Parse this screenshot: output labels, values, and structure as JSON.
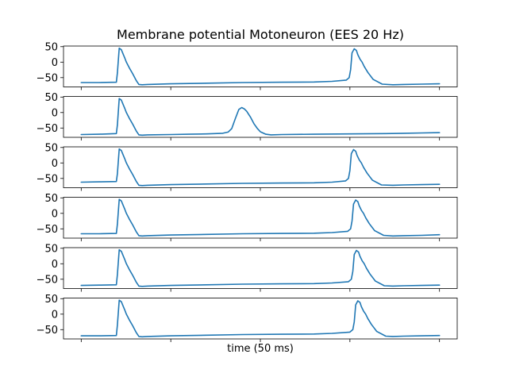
{
  "chart_data": {
    "type": "line",
    "title": "Membrane potential Motoneuron (EES 20 Hz)",
    "xlabel": "time (50 ms)",
    "ylabel": "",
    "grid": false,
    "xlim": [
      0,
      1000
    ],
    "ylim": [
      -80,
      52
    ],
    "yticks": [
      50,
      0,
      -50
    ],
    "ytick_labels": [
      "50",
      "0",
      "−50"
    ],
    "xtick_count": 5,
    "line_color": "#1f77b4",
    "subplots": [
      {
        "name": "",
        "x": [
          0,
          50,
          98,
          101,
          106,
          112,
          117,
          122,
          126,
          134,
          144,
          154,
          161,
          170,
          185,
          250,
          350,
          450,
          560,
          650,
          700,
          740,
          748,
          752,
          756,
          762,
          768,
          772,
          778,
          784,
          790,
          800,
          815,
          840,
          870,
          900,
          950,
          1000
        ],
        "y": [
          -66,
          -66,
          -65,
          -35,
          45,
          40,
          26,
          12,
          0,
          -18,
          -38,
          -60,
          -72,
          -73,
          -72,
          -70,
          -68,
          -66,
          -65,
          -64,
          -62,
          -58,
          -50,
          -25,
          30,
          43,
          38,
          24,
          10,
          0,
          -14,
          -33,
          -56,
          -71,
          -73,
          -72,
          -71,
          -70
        ]
      },
      {
        "name": "",
        "x": [
          0,
          50,
          98,
          101,
          106,
          112,
          117,
          122,
          126,
          134,
          144,
          154,
          161,
          170,
          185,
          250,
          300,
          350,
          395,
          410,
          420,
          430,
          440,
          448,
          455,
          462,
          472,
          482,
          492,
          500,
          515,
          530,
          560,
          650,
          750,
          850,
          950,
          1000
        ],
        "y": [
          -71,
          -70,
          -68,
          -40,
          45,
          40,
          26,
          12,
          0,
          -18,
          -38,
          -60,
          -72,
          -73,
          -72,
          -71,
          -70,
          -69,
          -67,
          -63,
          -52,
          -20,
          10,
          16,
          12,
          4,
          -14,
          -36,
          -52,
          -62,
          -70,
          -72,
          -71,
          -70,
          -69,
          -68,
          -66,
          -65
        ]
      },
      {
        "name": "",
        "x": [
          0,
          50,
          98,
          101,
          106,
          112,
          117,
          122,
          126,
          134,
          144,
          154,
          161,
          170,
          185,
          250,
          350,
          450,
          560,
          650,
          700,
          738,
          746,
          750,
          754,
          760,
          766,
          770,
          776,
          782,
          788,
          798,
          813,
          838,
          870,
          900,
          950,
          1000
        ],
        "y": [
          -62,
          -61,
          -60,
          -35,
          45,
          40,
          26,
          12,
          0,
          -18,
          -38,
          -60,
          -72,
          -73,
          -72,
          -70,
          -68,
          -66,
          -65,
          -64,
          -62,
          -58,
          -50,
          -25,
          30,
          43,
          38,
          24,
          10,
          0,
          -14,
          -33,
          -56,
          -71,
          -72,
          -71,
          -70,
          -69
        ]
      },
      {
        "name": "",
        "x": [
          0,
          50,
          98,
          101,
          106,
          112,
          117,
          122,
          126,
          134,
          144,
          154,
          161,
          170,
          185,
          250,
          350,
          450,
          560,
          650,
          700,
          744,
          752,
          756,
          760,
          766,
          772,
          776,
          782,
          788,
          794,
          804,
          819,
          844,
          870,
          900,
          950,
          1000
        ],
        "y": [
          -66,
          -66,
          -65,
          -35,
          45,
          40,
          26,
          12,
          0,
          -18,
          -38,
          -60,
          -72,
          -73,
          -72,
          -70,
          -68,
          -66,
          -65,
          -64,
          -62,
          -58,
          -50,
          -25,
          30,
          43,
          38,
          24,
          10,
          0,
          -14,
          -33,
          -56,
          -71,
          -73,
          -72,
          -71,
          -69
        ]
      },
      {
        "name": "",
        "x": [
          0,
          50,
          98,
          101,
          106,
          112,
          117,
          122,
          126,
          134,
          144,
          154,
          161,
          170,
          185,
          250,
          350,
          450,
          560,
          650,
          700,
          746,
          754,
          758,
          762,
          768,
          774,
          778,
          784,
          790,
          796,
          806,
          821,
          846,
          870,
          900,
          950,
          1000
        ],
        "y": [
          -70,
          -69,
          -68,
          -35,
          45,
          40,
          26,
          12,
          0,
          -18,
          -38,
          -60,
          -72,
          -73,
          -72,
          -70,
          -68,
          -66,
          -65,
          -64,
          -62,
          -58,
          -50,
          -25,
          30,
          43,
          38,
          24,
          10,
          0,
          -14,
          -33,
          -56,
          -71,
          -72,
          -71,
          -70,
          -69
        ]
      },
      {
        "name": "",
        "x": [
          0,
          50,
          98,
          101,
          106,
          112,
          117,
          122,
          126,
          134,
          144,
          154,
          161,
          170,
          185,
          250,
          350,
          450,
          560,
          650,
          700,
          750,
          758,
          762,
          766,
          772,
          778,
          782,
          788,
          794,
          800,
          810,
          825,
          850,
          870,
          900,
          950,
          1000
        ],
        "y": [
          -70,
          -70,
          -69,
          -35,
          45,
          40,
          26,
          12,
          0,
          -18,
          -38,
          -60,
          -72,
          -73,
          -72,
          -70,
          -68,
          -66,
          -65,
          -64,
          -62,
          -58,
          -50,
          -25,
          30,
          43,
          38,
          24,
          10,
          0,
          -14,
          -33,
          -56,
          -71,
          -72,
          -71,
          -70,
          -69
        ]
      }
    ]
  }
}
